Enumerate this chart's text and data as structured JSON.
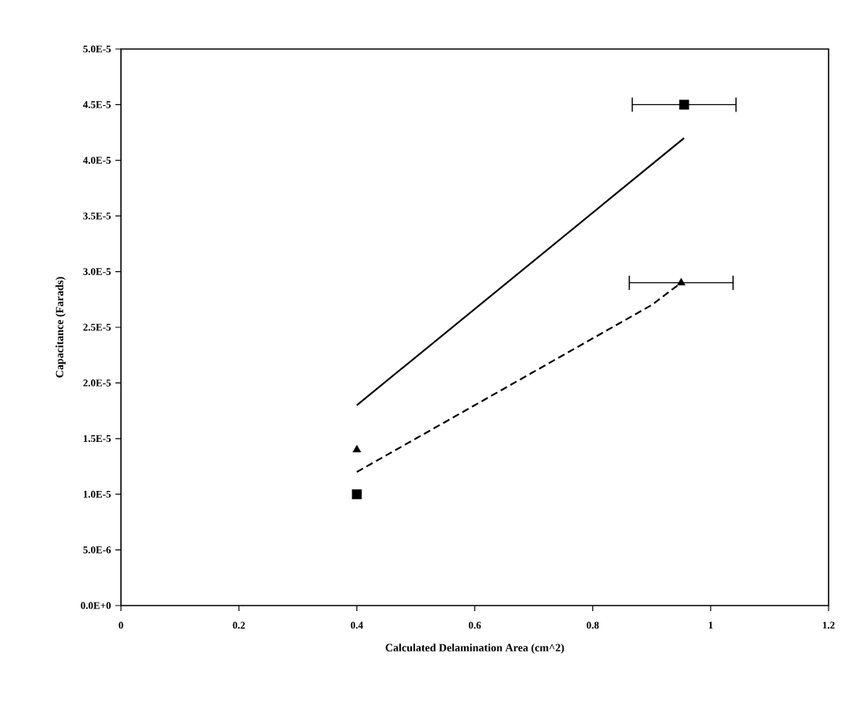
{
  "chart_data": {
    "type": "scatter",
    "xlabel": "Calculated Delamination Area (cm^2)",
    "ylabel": "Capacitance (Farads)",
    "xlim": [
      0,
      1.2
    ],
    "xticks": [
      0,
      0.2,
      0.4,
      0.6,
      0.8,
      1,
      1.2
    ],
    "ylim": [
      0,
      5e-05
    ],
    "yticks": [
      {
        "value": 0,
        "label": "0.0E+0"
      },
      {
        "value": 5e-06,
        "label": "5.0E-6"
      },
      {
        "value": 1e-05,
        "label": "1.0E-5"
      },
      {
        "value": 1.5e-05,
        "label": "1.5E-5"
      },
      {
        "value": 2e-05,
        "label": "2.0E-5"
      },
      {
        "value": 2.5e-05,
        "label": "2.5E-5"
      },
      {
        "value": 3e-05,
        "label": "3.0E-5"
      },
      {
        "value": 3.5e-05,
        "label": "3.5E-5"
      },
      {
        "value": 4e-05,
        "label": "4.0E-5"
      },
      {
        "value": 4.5e-05,
        "label": "4.5E-5"
      },
      {
        "value": 5e-05,
        "label": "5.0E-5"
      }
    ],
    "series": [
      {
        "color": "#000000",
        "marker": "square",
        "x": [
          0.4,
          0.955
        ],
        "values": [
          1e-05,
          4.5e-05
        ],
        "xerrors": [
          null,
          0.088
        ]
      },
      {
        "color": "#000000",
        "marker": "triangle",
        "x": [
          0.4,
          0.95
        ],
        "values": [
          1.4e-05,
          2.9e-05
        ],
        "xerrors": [
          null,
          0.088
        ]
      },
      {
        "type": "line",
        "color": "#000000",
        "line_style": "solid",
        "x": [
          0.4,
          0.955
        ],
        "values": [
          1.8e-05,
          4.2e-05
        ]
      },
      {
        "type": "line",
        "color": "#000000",
        "line_style": "dashed",
        "x": [
          0.4,
          0.5,
          0.6,
          0.7,
          0.8,
          0.9,
          0.95
        ],
        "values": [
          1.2e-05,
          1.5e-05,
          1.8e-05,
          2.1e-05,
          2.4e-05,
          2.7e-05,
          2.9e-05
        ]
      }
    ]
  }
}
